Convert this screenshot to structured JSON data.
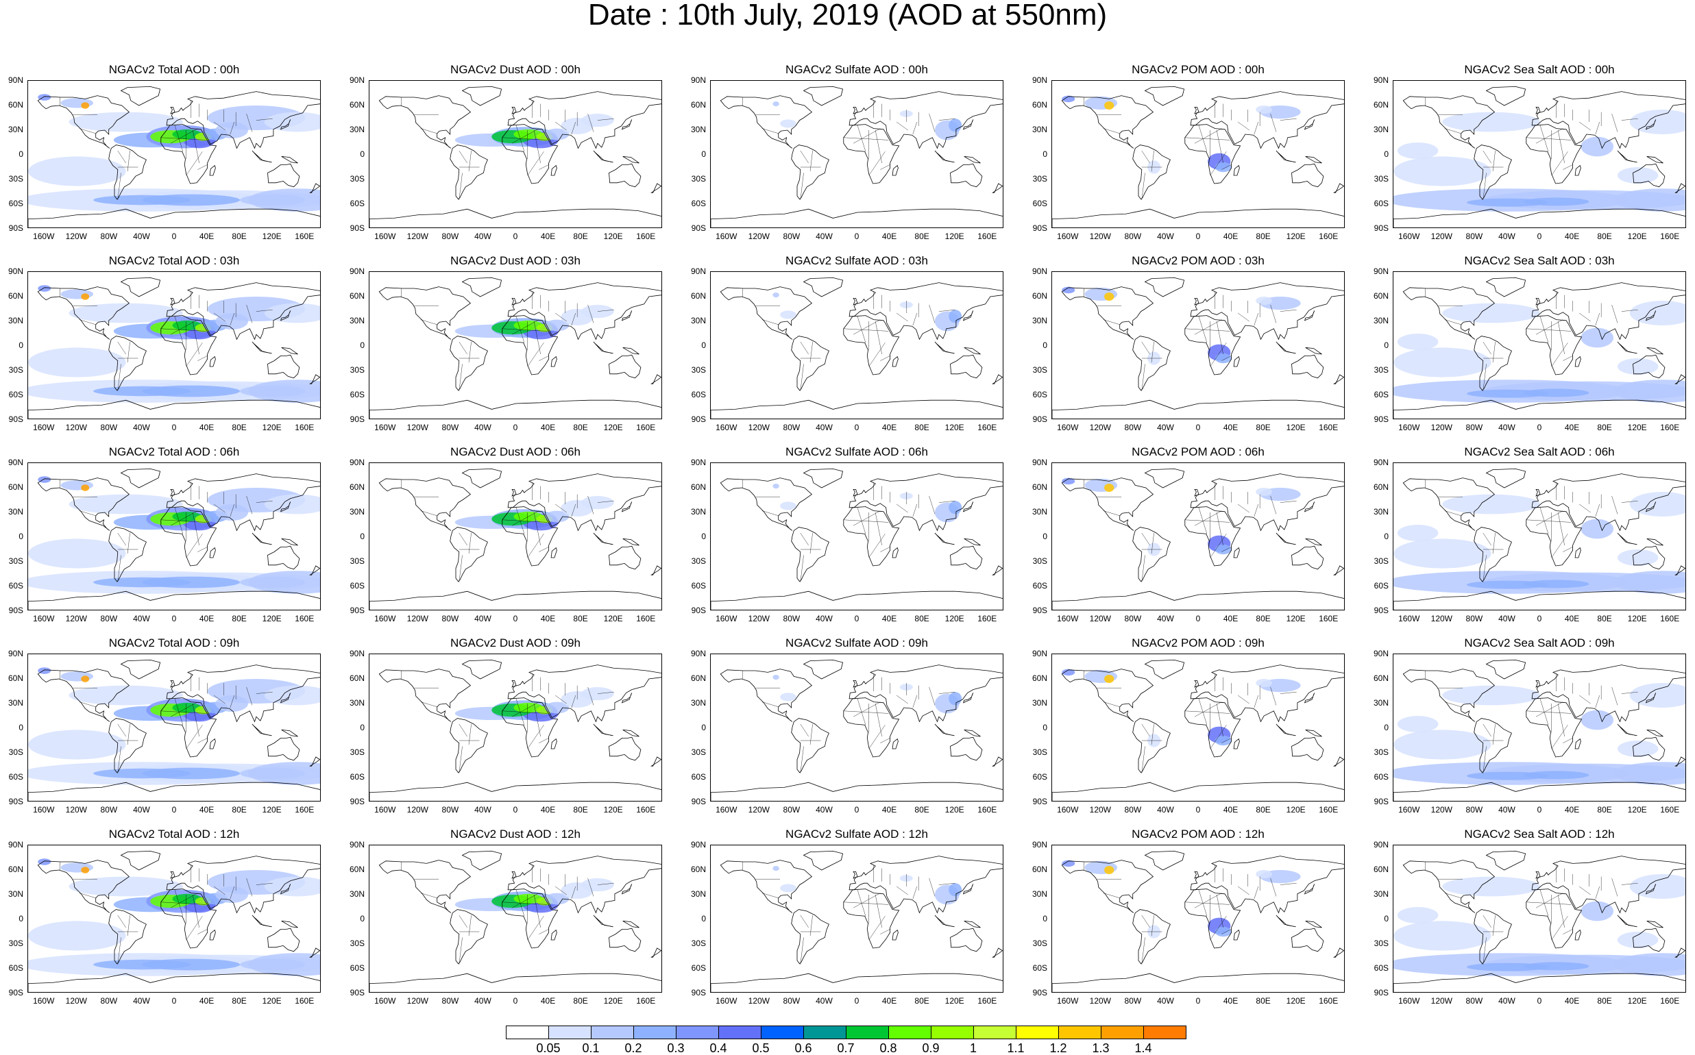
{
  "title": "Date : 10th July, 2019 (AOD at 550nm)",
  "lat_ticks": [
    "90N",
    "60N",
    "30N",
    "0",
    "30S",
    "60S",
    "90S"
  ],
  "lon_ticks": [
    "160W",
    "120W",
    "80W",
    "40W",
    "0",
    "40E",
    "80E",
    "120E",
    "160E"
  ],
  "columns": [
    {
      "species": "total",
      "titles": [
        "NGACv2 Total AOD : 00h",
        "NGACv2 Total AOD : 03h",
        "NGACv2 Total AOD : 06h",
        "NGACv2 Total AOD : 09h",
        "NGACv2 Total AOD : 12h"
      ]
    },
    {
      "species": "dust",
      "titles": [
        "NGACv2 Dust AOD : 00h",
        "NGACv2 Dust AOD : 03h",
        "NGACv2 Dust AOD : 06h",
        "NGACv2 Dust AOD : 09h",
        "NGACv2 Dust AOD : 12h"
      ]
    },
    {
      "species": "sulfate",
      "titles": [
        "NGACv2 Sulfate AOD : 00h",
        "NGACv2 Sulfate AOD : 03h",
        "NGACv2 Sulfate AOD : 06h",
        "NGACv2 Sulfate AOD : 09h",
        "NGACv2 Sulfate AOD : 12h"
      ]
    },
    {
      "species": "pom",
      "titles": [
        "NGACv2 POM AOD : 00h",
        "NGACv2 POM AOD : 03h",
        "NGACv2 POM AOD : 06h",
        "NGACv2 POM AOD : 09h",
        "NGACv2 POM  AOD : 12h"
      ]
    },
    {
      "species": "seasalt",
      "titles": [
        "NGACv2 Sea Salt AOD : 00h",
        "NGACv2 Sea Salt AOD : 03h",
        "NGACv2 Sea Salt AOD : 06h",
        "NGACv2 Sea Salt  AOD : 09h",
        "NGACv2 Sea Salt  AOD : 12h"
      ]
    }
  ],
  "colorbar": {
    "labels": [
      "0.05",
      "0.1",
      "0.2",
      "0.3",
      "0.4",
      "0.5",
      "0.6",
      "0.7",
      "0.8",
      "0.9",
      "1",
      "1.1",
      "1.2",
      "1.3",
      "1.4"
    ],
    "colors": [
      "#ffffff",
      "#d6e2ff",
      "#b5c9ff",
      "#8eb2ff",
      "#7f96ff",
      "#6370f8",
      "#0063ff",
      "#009696",
      "#00c633",
      "#63ff00",
      "#96ff00",
      "#c6ff33",
      "#ffff00",
      "#ffc600",
      "#ffa000",
      "#ff7c00",
      "#ff1900"
    ]
  }
}
